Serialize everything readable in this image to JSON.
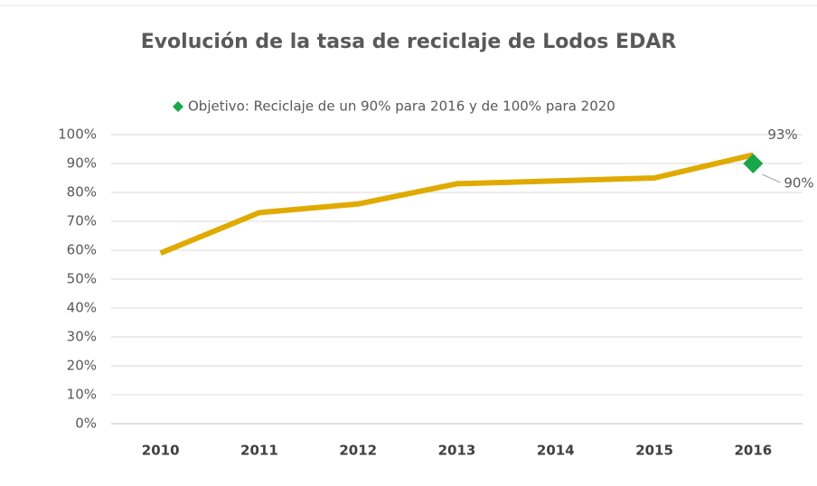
{
  "chart_data": {
    "type": "line",
    "title": "Evolución de la tasa de reciclaje de Lodos EDAR",
    "categories": [
      "2010",
      "2011",
      "2012",
      "2013",
      "2014",
      "2015",
      "2016"
    ],
    "series": [
      {
        "color": "#e0aa00",
        "values": [
          59,
          73,
          76,
          83,
          84,
          85,
          93
        ],
        "value_labels": [
          null,
          null,
          null,
          null,
          null,
          null,
          "93%"
        ]
      },
      {
        "name": "Objetivo: Reciclaje de un 90% para 2016 y de 100% para 2020",
        "color": "#1aa64a",
        "marker": "diamond",
        "values": [
          null,
          null,
          null,
          null,
          null,
          null,
          90
        ],
        "value_labels": [
          null,
          null,
          null,
          null,
          null,
          null,
          "90%"
        ]
      }
    ],
    "ylim": [
      0,
      100
    ],
    "yticks": [
      {
        "value": 0,
        "label": "0%"
      },
      {
        "value": 10,
        "label": "10%"
      },
      {
        "value": 20,
        "label": "20%"
      },
      {
        "value": 30,
        "label": "30%"
      },
      {
        "value": 40,
        "label": "40%"
      },
      {
        "value": 50,
        "label": "50%"
      },
      {
        "value": 60,
        "label": "60%"
      },
      {
        "value": 70,
        "label": "70%"
      },
      {
        "value": 80,
        "label": "80%"
      },
      {
        "value": 90,
        "label": "90%"
      },
      {
        "value": 100,
        "label": "100%"
      }
    ],
    "grid": true,
    "legend": "top"
  }
}
